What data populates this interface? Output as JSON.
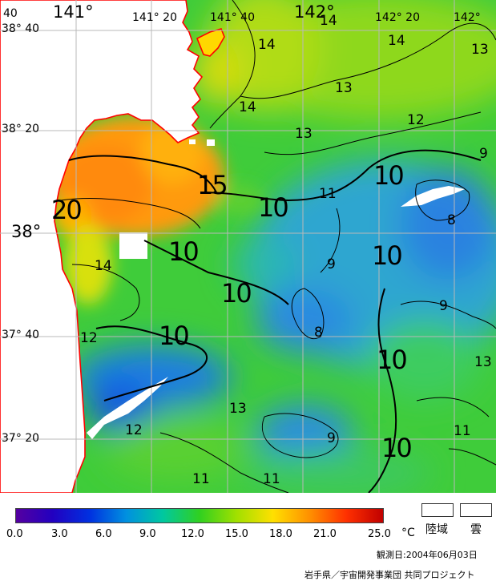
{
  "map": {
    "longitude_labels": [
      {
        "text": "40",
        "big": false
      },
      {
        "text": "141°",
        "big": true
      },
      {
        "text": "141° 20",
        "big": false
      },
      {
        "text": "141° 40",
        "big": false
      },
      {
        "text": "142°",
        "big": true
      },
      {
        "text": "142° 20",
        "big": false
      },
      {
        "text": "142°",
        "big": false
      }
    ],
    "latitude_labels": [
      {
        "text": "38° 40",
        "big": false
      },
      {
        "text": "38° 20",
        "big": false
      },
      {
        "text": "38°",
        "big": true
      },
      {
        "text": "37° 40",
        "big": false
      },
      {
        "text": "37° 20",
        "big": false
      }
    ],
    "contour_labels": [
      {
        "text": "14"
      },
      {
        "text": "14"
      },
      {
        "text": "14"
      },
      {
        "text": "13"
      },
      {
        "text": "14"
      },
      {
        "text": "13"
      },
      {
        "text": "12"
      },
      {
        "text": "13"
      },
      {
        "text": "9"
      },
      {
        "text": "15"
      },
      {
        "text": "11"
      },
      {
        "text": "10"
      },
      {
        "text": "10"
      },
      {
        "text": "20"
      },
      {
        "text": "8"
      },
      {
        "text": "10"
      },
      {
        "text": "14"
      },
      {
        "text": "9"
      },
      {
        "text": "10"
      },
      {
        "text": "9"
      },
      {
        "text": "10"
      },
      {
        "text": "12"
      },
      {
        "text": "8"
      },
      {
        "text": "10"
      },
      {
        "text": "13"
      },
      {
        "text": "13"
      },
      {
        "text": "12"
      },
      {
        "text": "9"
      },
      {
        "text": "10"
      },
      {
        "text": "11"
      },
      {
        "text": "11"
      },
      {
        "text": "11"
      },
      {
        "text": "10"
      }
    ],
    "colors": {
      "land": "#ffffff",
      "coastline": "#ff0000",
      "grid": "#b8b8b8",
      "contour": "#000000"
    }
  },
  "legend": {
    "colorbar_stops": [
      "#5500a0",
      "#2200c0",
      "#0030e0",
      "#0090e0",
      "#00c8a0",
      "#30d020",
      "#a0e000",
      "#ffe000",
      "#ff9000",
      "#ff3000",
      "#c00000"
    ],
    "ticks": [
      "0.0",
      "3.0",
      "6.0",
      "9.0",
      "12.0",
      "15.0",
      "18.0",
      "21.0",
      "25.0"
    ],
    "unit": "°C",
    "land_label": "陸域",
    "cloud_label": "雲"
  },
  "observation_date": "観測日:2004年06月03日",
  "credit": "岩手県／宇宙開発事業団 共同プロジェクト"
}
